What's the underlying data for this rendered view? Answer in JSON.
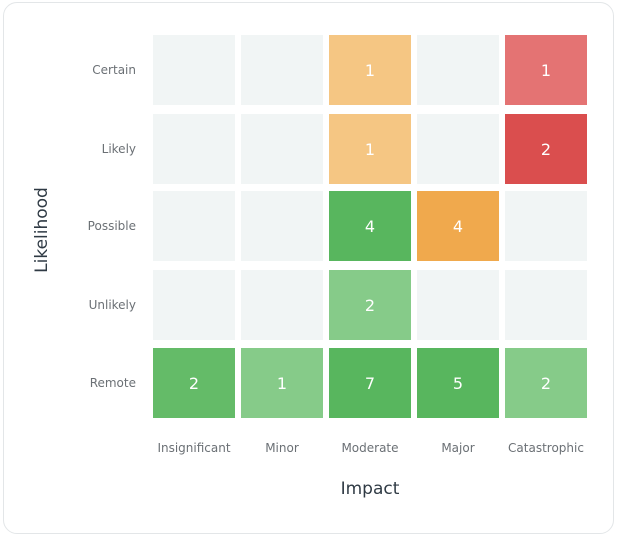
{
  "chart_data": {
    "type": "heatmap",
    "xlabel": "Impact",
    "ylabel": "Likelihood",
    "x_categories": [
      "Insignificant",
      "Minor",
      "Moderate",
      "Major",
      "Catastrophic"
    ],
    "y_categories": [
      "Certain",
      "Likely",
      "Possible",
      "Unlikely",
      "Remote"
    ],
    "values": [
      [
        null,
        null,
        1,
        null,
        1
      ],
      [
        null,
        null,
        1,
        null,
        2
      ],
      [
        null,
        null,
        4,
        4,
        null
      ],
      [
        null,
        null,
        2,
        null,
        null
      ],
      [
        2,
        1,
        7,
        5,
        2
      ]
    ],
    "cell_colors": [
      [
        "#f1f5f5",
        "#f1f5f5",
        "#f5c683",
        "#f1f5f5",
        "#e47373"
      ],
      [
        "#f1f5f5",
        "#f1f5f5",
        "#f5c683",
        "#f1f5f5",
        "#da4e4e"
      ],
      [
        "#f1f5f5",
        "#f1f5f5",
        "#58b65e",
        "#f0a94d",
        "#f1f5f5"
      ],
      [
        "#f1f5f5",
        "#f1f5f5",
        "#86cb89",
        "#f1f5f5",
        "#f1f5f5"
      ],
      [
        "#64bb68",
        "#86cb89",
        "#58b65e",
        "#58b65e",
        "#86cb89"
      ]
    ],
    "grid": false,
    "legend": "none"
  }
}
